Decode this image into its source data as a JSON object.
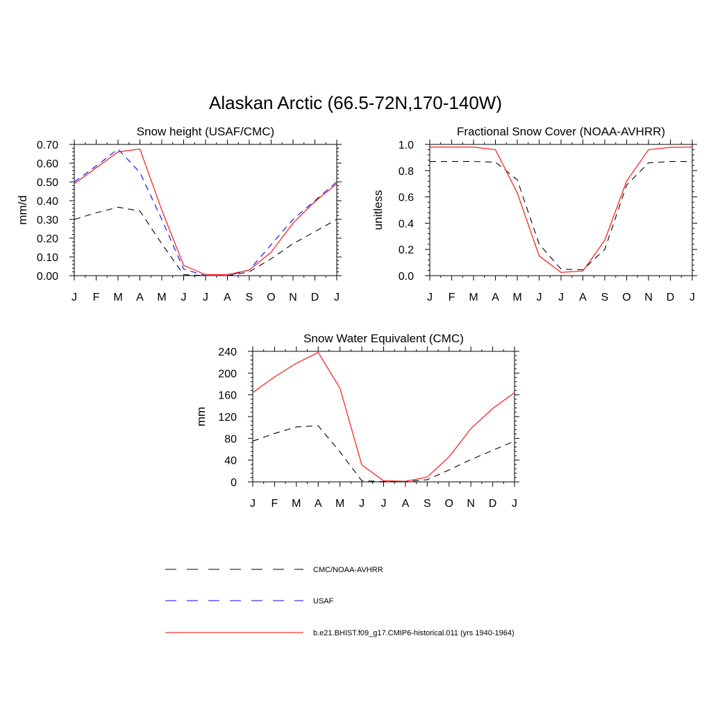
{
  "figure": {
    "title": "Alaskan Arctic (66.5-72N,170-140W)"
  },
  "legend": [
    {
      "label": "CMC/NOAA-AVHRR",
      "color": "#000000",
      "style": "dashed"
    },
    {
      "label": "USAF",
      "color": "#0000ff",
      "style": "dashed"
    },
    {
      "label": "b.e21.BHIST.f09_g17.CMIP6-historical.011 (yrs 1940-1964)",
      "color": "#ff0000",
      "style": "solid"
    }
  ],
  "chart_data": [
    {
      "type": "line",
      "title": "Snow height (USAF/CMC)",
      "xlabel": "",
      "ylabel": "mm/d",
      "categories": [
        "J",
        "F",
        "M",
        "A",
        "M",
        "J",
        "J",
        "A",
        "S",
        "O",
        "N",
        "D",
        "J"
      ],
      "ylim": [
        0,
        0.7
      ],
      "yticks": [
        "0.00",
        "0.10",
        "0.20",
        "0.30",
        "0.40",
        "0.50",
        "0.60",
        "0.70"
      ],
      "grid": false,
      "series": [
        {
          "name": "CMC/NOAA-AVHRR",
          "color": "#000000",
          "style": "dashed",
          "values": [
            0.3,
            0.335,
            0.365,
            0.345,
            0.17,
            0.005,
            0.0,
            0.0,
            0.02,
            0.09,
            0.17,
            0.235,
            0.3
          ]
        },
        {
          "name": "USAF",
          "color": "#0000ff",
          "style": "dashed",
          "values": [
            0.5,
            0.585,
            0.675,
            0.55,
            0.3,
            0.035,
            0.0,
            0.0,
            0.03,
            0.165,
            0.3,
            0.4,
            0.5
          ]
        },
        {
          "name": "b.e21.BHIST.f09_g17.CMIP6-historical.011 (yrs 1940-1964)",
          "color": "#ff0000",
          "style": "solid",
          "values": [
            0.49,
            0.575,
            0.66,
            0.675,
            0.35,
            0.055,
            0.005,
            0.005,
            0.03,
            0.125,
            0.28,
            0.395,
            0.49
          ]
        }
      ]
    },
    {
      "type": "line",
      "title": "Fractional Snow Cover (NOAA-AVHRR)",
      "xlabel": "",
      "ylabel": "unitless",
      "categories": [
        "J",
        "F",
        "M",
        "A",
        "M",
        "J",
        "J",
        "A",
        "S",
        "O",
        "N",
        "D",
        "J"
      ],
      "ylim": [
        0,
        1.0
      ],
      "yticks": [
        "0.0",
        "0.2",
        "0.4",
        "0.6",
        "0.8",
        "1.0"
      ],
      "grid": false,
      "series": [
        {
          "name": "CMC/NOAA-AVHRR",
          "color": "#000000",
          "style": "dashed",
          "values": [
            0.87,
            0.87,
            0.87,
            0.865,
            0.73,
            0.24,
            0.05,
            0.045,
            0.2,
            0.69,
            0.86,
            0.87,
            0.87
          ]
        },
        {
          "name": "b.e21.BHIST.f09_g17.CMIP6-historical.011 (yrs 1940-1964)",
          "color": "#ff0000",
          "style": "solid",
          "values": [
            0.98,
            0.98,
            0.98,
            0.96,
            0.63,
            0.15,
            0.025,
            0.035,
            0.27,
            0.72,
            0.96,
            0.978,
            0.98
          ]
        }
      ]
    },
    {
      "type": "line",
      "title": "Snow Water Equivalent (CMC)",
      "xlabel": "",
      "ylabel": "mm",
      "categories": [
        "J",
        "F",
        "M",
        "A",
        "M",
        "J",
        "J",
        "A",
        "S",
        "O",
        "N",
        "D",
        "J"
      ],
      "ylim": [
        0,
        240
      ],
      "yticks": [
        "0",
        "40",
        "80",
        "120",
        "160",
        "200",
        "240"
      ],
      "grid": false,
      "series": [
        {
          "name": "CMC/NOAA-AVHRR",
          "color": "#000000",
          "style": "dashed",
          "values": [
            75,
            89,
            101,
            103,
            55,
            2,
            0.5,
            0.5,
            4,
            22,
            41,
            58,
            75
          ]
        },
        {
          "name": "b.e21.BHIST.f09_g17.CMIP6-historical.011 (yrs 1940-1964)",
          "color": "#ff0000",
          "style": "solid",
          "values": [
            164,
            193,
            218,
            238,
            172,
            31,
            2,
            1,
            9,
            46,
            98,
            135,
            164
          ]
        }
      ]
    }
  ]
}
